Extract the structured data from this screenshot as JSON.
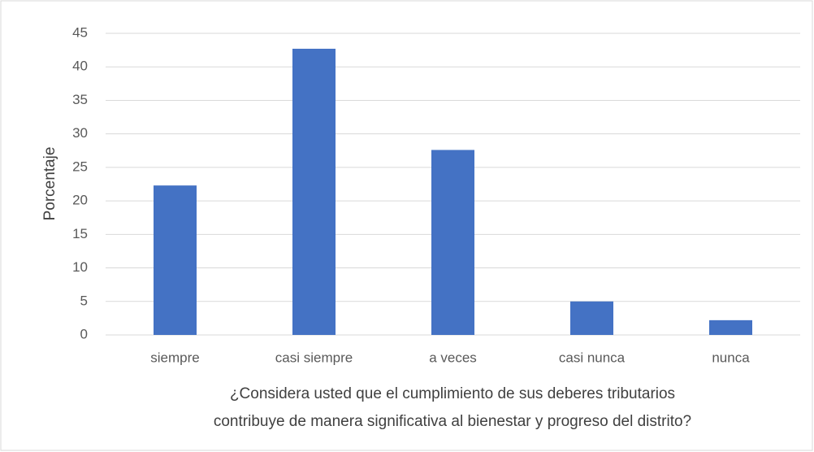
{
  "chart_data": {
    "type": "bar",
    "ylabel": "Porcentaje",
    "xlabel": [
      "¿Considera usted que el cumplimiento de sus deberes tributarios",
      "contribuye de manera significativa al bienestar y progreso del distrito?"
    ],
    "categories": [
      "siempre",
      "casi siempre",
      "a veces",
      "casi nunca",
      "nunca"
    ],
    "values": [
      22.3,
      42.7,
      27.6,
      5.0,
      2.2
    ],
    "color": "#4472c4",
    "ylim": [
      0,
      45
    ],
    "yticks": [
      0,
      5,
      10,
      15,
      20,
      25,
      30,
      35,
      40,
      45
    ],
    "grid": true
  }
}
